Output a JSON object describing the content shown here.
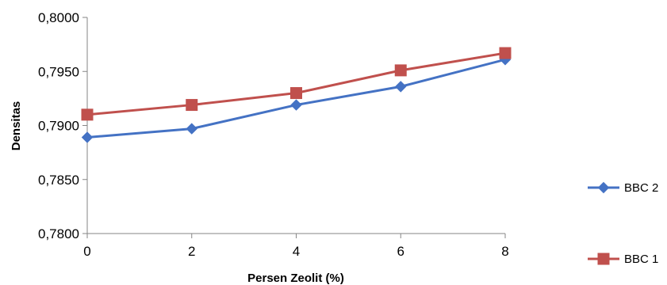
{
  "chart_data": {
    "type": "line",
    "title": "",
    "xlabel": "Persen Zeolit (%)",
    "ylabel": "Densitas",
    "x": [
      0,
      2,
      4,
      6,
      8
    ],
    "x_tick_labels": [
      "0",
      "2",
      "4",
      "6",
      "8"
    ],
    "ylim": [
      0.78,
      0.8
    ],
    "y_ticks": [
      0.78,
      0.785,
      0.79,
      0.795,
      0.8
    ],
    "y_tick_labels": [
      "0,7800",
      "0,7850",
      "0,7900",
      "0,7950",
      "0,8000"
    ],
    "grid": false,
    "legend_position": "right",
    "series": [
      {
        "name": "BBC 2",
        "marker": "diamond",
        "color": "#4472C4",
        "values": [
          0.7889,
          0.7897,
          0.7919,
          0.7936,
          0.7961
        ]
      },
      {
        "name": "BBC 1",
        "marker": "square",
        "color": "#C0504D",
        "values": [
          0.791,
          0.7919,
          0.793,
          0.7951,
          0.7967
        ]
      }
    ]
  }
}
